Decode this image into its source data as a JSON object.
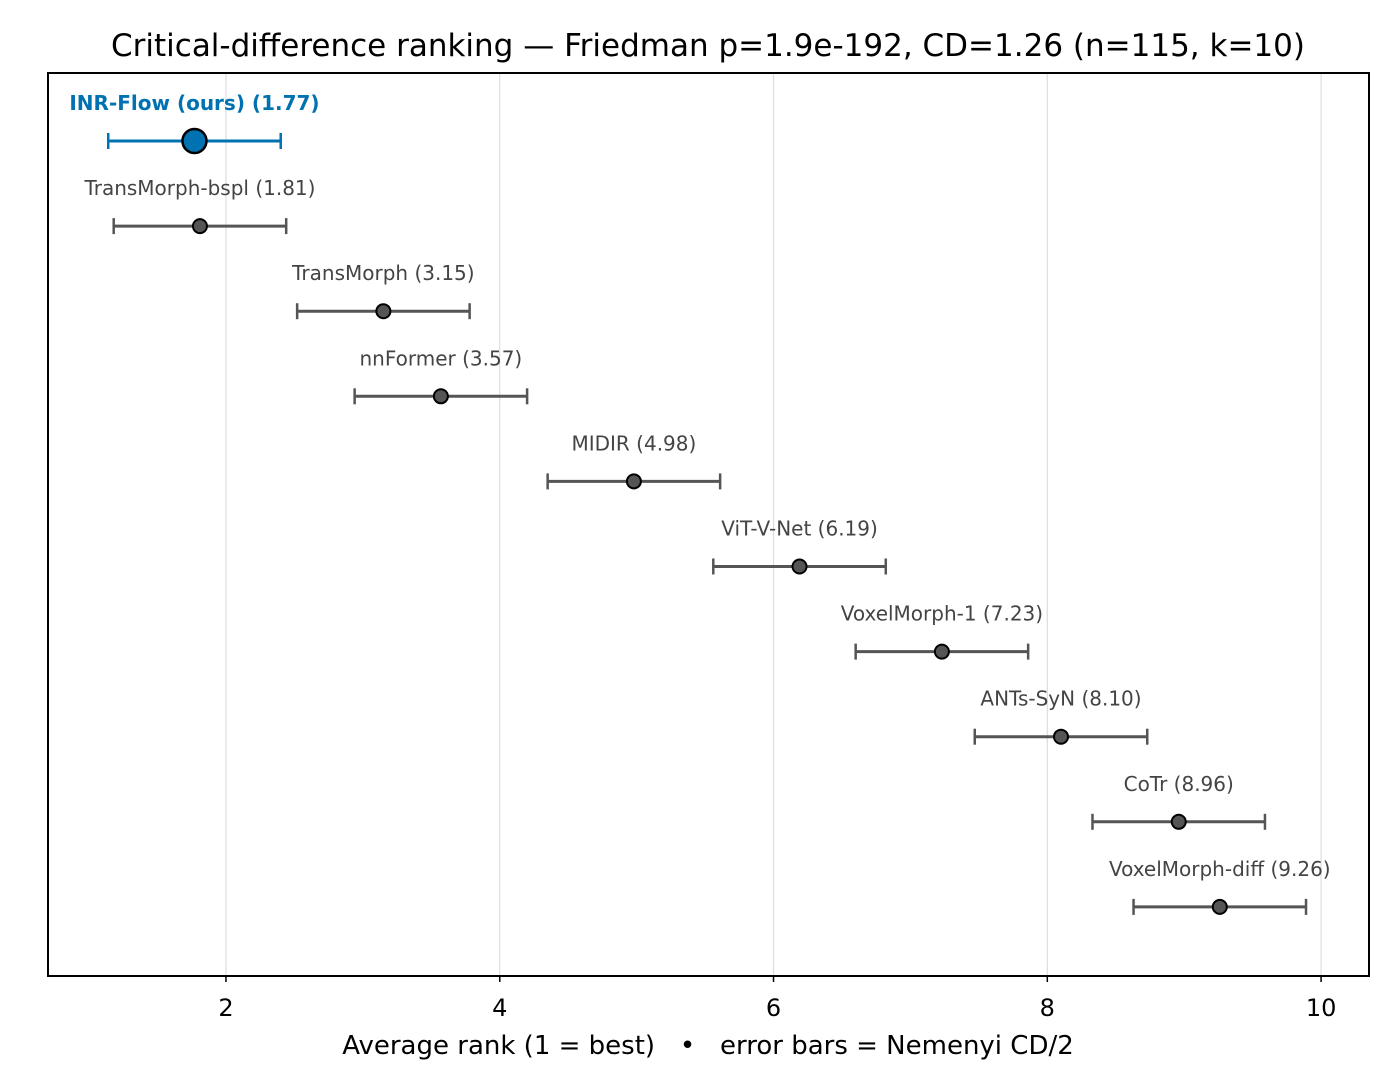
{
  "chart_data": {
    "type": "scatter",
    "title": "Critical-difference ranking — Friedman p=1.9e-192, CD=1.26 (n=115, k=10)",
    "xlabel": "Average rank (1 = best)   •   error bars = Nemenyi CD/2",
    "ylabel": "",
    "xlim": [
      0.7,
      10.35
    ],
    "xticks": [
      2,
      4,
      6,
      8,
      10
    ],
    "xtick_labels": [
      "2",
      "4",
      "6",
      "8",
      "10"
    ],
    "grid": "vertical",
    "cd_half_width": 0.63,
    "colors": {
      "highlight": "#0072b2",
      "default_marker": "#555555",
      "default_error_bar": "#555555",
      "default_label": "#444444"
    },
    "methods": [
      {
        "name": "INR-Flow (ours)",
        "rank": 1.77,
        "label": "INR-Flow (ours)  (1.77)",
        "highlight": true
      },
      {
        "name": "TransMorph-bspl",
        "rank": 1.81,
        "label": "TransMorph-bspl  (1.81)",
        "highlight": false
      },
      {
        "name": "TransMorph",
        "rank": 3.15,
        "label": "TransMorph  (3.15)",
        "highlight": false
      },
      {
        "name": "nnFormer",
        "rank": 3.57,
        "label": "nnFormer  (3.57)",
        "highlight": false
      },
      {
        "name": "MIDIR",
        "rank": 4.98,
        "label": "MIDIR  (4.98)",
        "highlight": false
      },
      {
        "name": "ViT-V-Net",
        "rank": 6.19,
        "label": "ViT-V-Net  (6.19)",
        "highlight": false
      },
      {
        "name": "VoxelMorph-1",
        "rank": 7.23,
        "label": "VoxelMorph-1  (7.23)",
        "highlight": false
      },
      {
        "name": "ANTs-SyN",
        "rank": 8.1,
        "label": "ANTs-SyN  (8.10)",
        "highlight": false
      },
      {
        "name": "CoTr",
        "rank": 8.96,
        "label": "CoTr  (8.96)",
        "highlight": false
      },
      {
        "name": "VoxelMorph-diff",
        "rank": 9.26,
        "label": "VoxelMorph-diff  (9.26)",
        "highlight": false
      }
    ]
  }
}
